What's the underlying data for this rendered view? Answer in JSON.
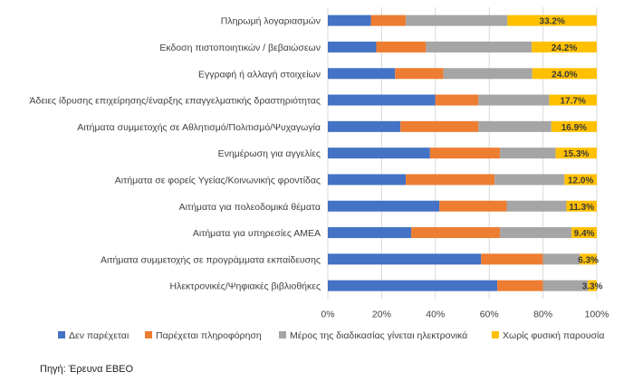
{
  "chart_data": {
    "type": "bar",
    "orientation": "horizontal",
    "stacked": "percent",
    "categories": [
      "Πληρωμή λογαριασμών",
      "Εκδοση πιστοποιητικών / βεβαιώσεων",
      "Εγγραφή ή αλλαγή στοιχείων",
      "Άδειες ίδρυσης επιχείρησης/έναρξης επαγγελματικής δραστηριότητας",
      "Αιτήματα συμμετοχής σε Αθλητισμό/Πολιτισμό/Ψυχαγωγία",
      "Ενημέρωση για αγγελίες",
      "Αιτήματα σε φορείς Υγείας/Κοινωνικής φροντίδας",
      "Αιτήματα για πολεοδομικά θέματα",
      "Αιτήματα για υπηρεσίες ΑΜΕΑ",
      "Αιτήματα συμμετοχής σε προγράμματα εκπαίδευσης",
      "Ηλεκτρονικές/Ψηφιακές βιβλιοθήκες"
    ],
    "series": [
      {
        "name": "Δεν παρέχεται",
        "color": "#4472C4",
        "values": [
          16.0,
          18.0,
          25.0,
          40.0,
          27.0,
          38.0,
          29.0,
          41.5,
          31.0,
          57.0,
          63.0
        ]
      },
      {
        "name": "Παρέχεται πληροφόρηση",
        "color": "#ED7D31",
        "values": [
          13.0,
          18.5,
          18.0,
          16.0,
          29.0,
          26.0,
          33.0,
          25.0,
          33.0,
          23.0,
          17.0
        ]
      },
      {
        "name": "Μέρος της διαδικασίας γίνεται ηλεκτρονικά",
        "color": "#A5A5A5",
        "values": [
          37.8,
          39.3,
          33.0,
          26.3,
          27.1,
          20.7,
          26.0,
          22.2,
          26.6,
          13.7,
          16.7
        ]
      },
      {
        "name": "Χωρίς φυσική παρουσία",
        "color": "#FFC000",
        "values": [
          33.2,
          24.2,
          24.0,
          17.7,
          16.9,
          15.3,
          12.0,
          11.3,
          9.4,
          6.3,
          3.3
        ]
      }
    ],
    "data_labels": [
      "33.2%",
      "24.2%",
      "24.0%",
      "17.7%",
      "16.9%",
      "15.3%",
      "12.0%",
      "11.3%",
      "9.4%",
      "6.3%",
      "3.3%"
    ],
    "x_ticks": [
      "0%",
      "20%",
      "40%",
      "60%",
      "80%",
      "100%"
    ],
    "xlim": [
      0,
      100
    ],
    "grid": true,
    "legend_position": "bottom"
  },
  "source_text": "Πηγή: Έρευνα ΕΒΕΟ"
}
